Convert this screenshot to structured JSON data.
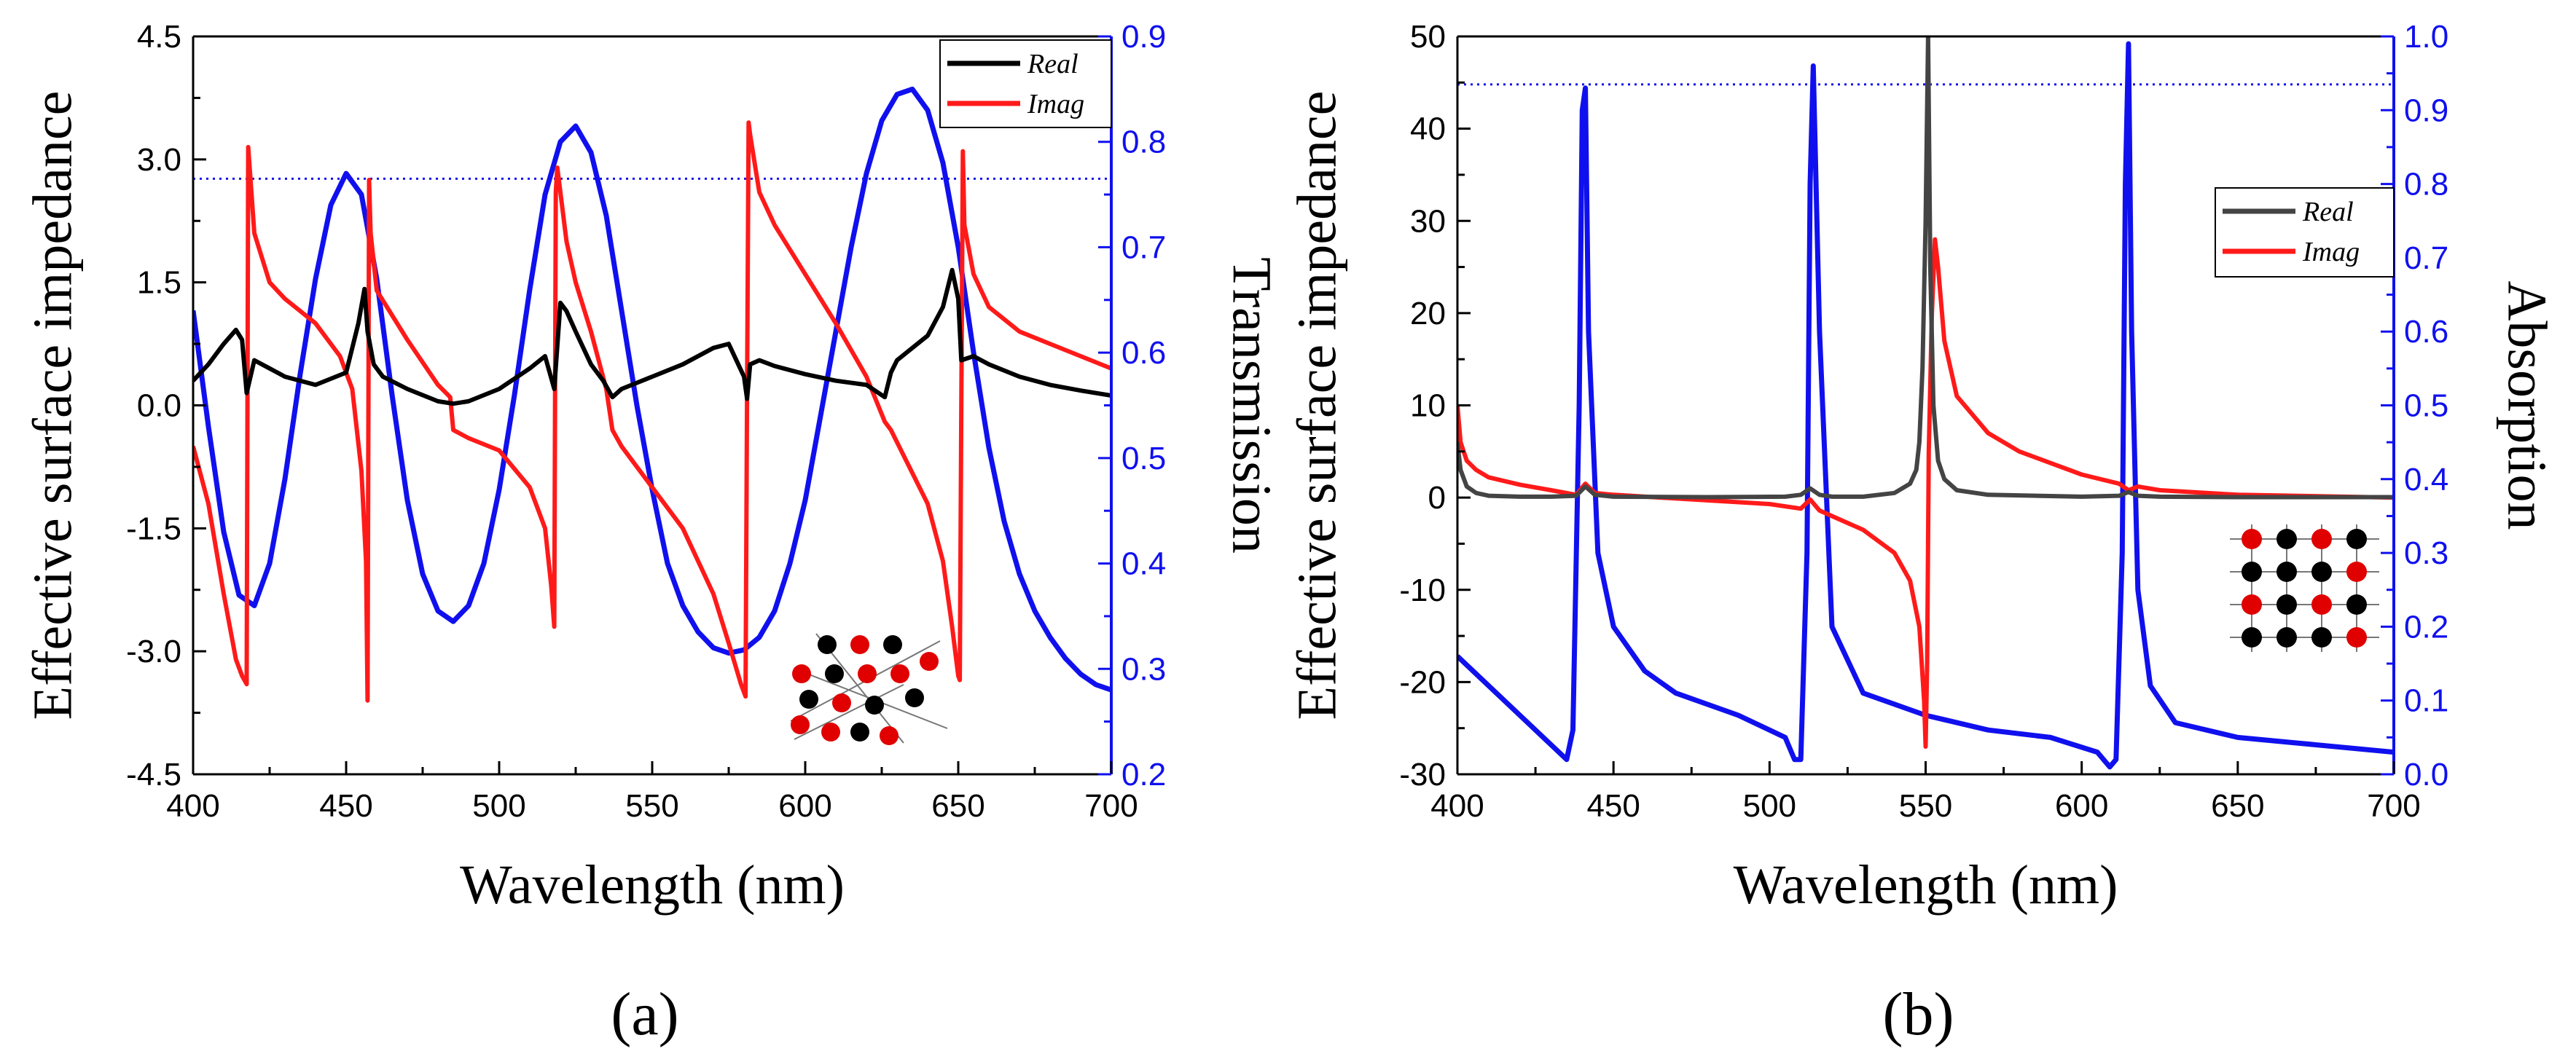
{
  "colors": {
    "real_a": "#000000",
    "real_b": "#444444",
    "imag": "#ff1a1a",
    "blue": "#1010ee",
    "red_atom": "#e00000",
    "black_atom": "#000000"
  },
  "chart_data": [
    {
      "panel_label": "(a)",
      "type": "line",
      "xlabel": "Wavelength (nm)",
      "ylabel": "Effective surface impedance",
      "y2label": "Transmission",
      "xlim": [
        400,
        700
      ],
      "ylim": [
        -4.5,
        4.5
      ],
      "y2lim": [
        0.2,
        0.9
      ],
      "x_ticks": [
        "400",
        "450",
        "500",
        "550",
        "600",
        "650",
        "700"
      ],
      "y_ticks": [
        "-4.5",
        "-3.0",
        "-1.5",
        "0.0",
        "1.5",
        "3.0",
        "4.5"
      ],
      "y2_ticks": [
        "0.2",
        "0.3",
        "0.4",
        "0.5",
        "0.6",
        "0.7",
        "0.8",
        "0.9"
      ],
      "legend": [
        "Real",
        "Imag"
      ],
      "reference_line": {
        "axis": "y2",
        "value": 0.765,
        "style": "dotted"
      },
      "series": [
        {
          "name": "Real",
          "axis": "y",
          "x": [
            400,
            405,
            410,
            414,
            416,
            417.5,
            420,
            425,
            430,
            440,
            450,
            454,
            456,
            457,
            459,
            462,
            470,
            480,
            485,
            490,
            500,
            510,
            515,
            518,
            520,
            522,
            525,
            530,
            534,
            537,
            540,
            550,
            560,
            570,
            575,
            580,
            581,
            582,
            585,
            590,
            600,
            610,
            620,
            626,
            628,
            630,
            640,
            645,
            648,
            650,
            651,
            655,
            660,
            670,
            680,
            690,
            700
          ],
          "y": [
            0.3,
            0.5,
            0.75,
            0.92,
            0.8,
            0.15,
            0.55,
            0.45,
            0.35,
            0.25,
            0.4,
            1.0,
            1.42,
            0.9,
            0.5,
            0.35,
            0.2,
            0.05,
            0.02,
            0.05,
            0.2,
            0.45,
            0.6,
            0.2,
            1.25,
            1.15,
            0.9,
            0.5,
            0.3,
            0.1,
            0.2,
            0.35,
            0.5,
            0.7,
            0.75,
            0.35,
            0.08,
            0.5,
            0.55,
            0.48,
            0.38,
            0.3,
            0.25,
            0.1,
            0.4,
            0.55,
            0.85,
            1.2,
            1.65,
            1.3,
            0.55,
            0.6,
            0.5,
            0.35,
            0.25,
            0.18,
            0.12
          ]
        },
        {
          "name": "Imag",
          "axis": "y",
          "x": [
            400,
            405,
            410,
            414,
            416,
            417.5,
            418,
            420,
            425,
            430,
            440,
            448,
            452,
            455,
            456.5,
            457,
            457.5,
            458,
            460,
            470,
            480,
            484,
            485,
            490,
            500,
            510,
            515,
            517,
            518,
            518.5,
            519,
            522,
            525,
            530,
            535,
            537,
            540,
            550,
            560,
            570,
            575,
            579,
            580.5,
            581,
            581.5,
            582,
            585,
            590,
            600,
            610,
            620,
            626,
            628,
            630,
            640,
            645,
            648,
            650,
            650.5,
            651,
            651.5,
            652,
            655,
            660,
            670,
            680,
            690,
            700
          ],
          "y": [
            -0.5,
            -1.2,
            -2.3,
            -3.1,
            -3.3,
            -3.4,
            3.15,
            2.1,
            1.5,
            1.3,
            1.0,
            0.6,
            0.2,
            -0.8,
            -1.9,
            -3.6,
            2.75,
            2.1,
            1.4,
            0.8,
            0.25,
            0.1,
            -0.3,
            -0.4,
            -0.55,
            -1.0,
            -1.5,
            -2.2,
            -2.7,
            2.6,
            2.9,
            2.0,
            1.5,
            0.9,
            0.2,
            -0.3,
            -0.5,
            -1.0,
            -1.5,
            -2.3,
            -2.9,
            -3.4,
            -3.55,
            0.2,
            3.45,
            3.3,
            2.6,
            2.2,
            1.6,
            1.0,
            0.35,
            -0.2,
            -0.3,
            -0.45,
            -1.2,
            -1.9,
            -2.7,
            -3.3,
            -3.35,
            0.0,
            3.1,
            2.2,
            1.6,
            1.2,
            0.9,
            0.75,
            0.6,
            0.45
          ]
        },
        {
          "name": "Transmission",
          "axis": "y2",
          "x": [
            400,
            405,
            410,
            415,
            420,
            425,
            430,
            435,
            440,
            445,
            450,
            455,
            460,
            465,
            470,
            475,
            480,
            485,
            490,
            495,
            500,
            505,
            510,
            515,
            520,
            525,
            530,
            535,
            540,
            545,
            550,
            555,
            560,
            565,
            570,
            575,
            580,
            585,
            590,
            595,
            600,
            605,
            610,
            615,
            620,
            625,
            630,
            635,
            640,
            645,
            650,
            655,
            660,
            665,
            670,
            675,
            680,
            685,
            690,
            695,
            700
          ],
          "y": [
            0.64,
            0.53,
            0.43,
            0.37,
            0.36,
            0.4,
            0.48,
            0.58,
            0.67,
            0.74,
            0.77,
            0.75,
            0.67,
            0.56,
            0.46,
            0.39,
            0.355,
            0.345,
            0.36,
            0.4,
            0.47,
            0.56,
            0.66,
            0.75,
            0.8,
            0.815,
            0.79,
            0.73,
            0.64,
            0.55,
            0.47,
            0.4,
            0.36,
            0.335,
            0.32,
            0.315,
            0.318,
            0.33,
            0.355,
            0.4,
            0.46,
            0.54,
            0.62,
            0.7,
            0.77,
            0.82,
            0.845,
            0.85,
            0.83,
            0.78,
            0.7,
            0.6,
            0.51,
            0.44,
            0.39,
            0.355,
            0.33,
            0.31,
            0.295,
            0.285,
            0.28
          ]
        }
      ]
    },
    {
      "panel_label": "(b)",
      "type": "line",
      "xlabel": "Wavelength (nm)",
      "ylabel": "Effective surface impedance",
      "y2label": "Absorption",
      "xlim": [
        400,
        700
      ],
      "ylim": [
        -30,
        50
      ],
      "y2lim": [
        0.0,
        1.0
      ],
      "x_ticks": [
        "400",
        "450",
        "500",
        "550",
        "600",
        "650",
        "700"
      ],
      "y_ticks": [
        "-30",
        "-20",
        "-10",
        "0",
        "10",
        "20",
        "30",
        "40",
        "50"
      ],
      "y2_ticks": [
        "0.0",
        "0.1",
        "0.2",
        "0.3",
        "0.4",
        "0.5",
        "0.6",
        "0.7",
        "0.8",
        "0.9",
        "1.0"
      ],
      "legend": [
        "Real",
        "Imag"
      ],
      "reference_line": {
        "axis": "y2",
        "value": 0.935,
        "style": "dotted"
      },
      "series": [
        {
          "name": "Real",
          "axis": "y",
          "x": [
            400,
            401,
            403,
            406,
            410,
            420,
            430,
            438,
            441,
            444,
            450,
            480,
            505,
            510,
            513,
            516,
            520,
            530,
            540,
            545,
            547,
            548,
            549,
            550,
            550.8,
            551.5,
            552.5,
            554,
            556,
            560,
            570,
            600,
            612,
            615,
            618,
            625,
            650,
            700
          ],
          "y": [
            6,
            3,
            1.2,
            0.5,
            0.2,
            0.1,
            0.1,
            0.2,
            1.2,
            0.3,
            0.1,
            0.05,
            0.1,
            0.3,
            1.0,
            0.3,
            0.1,
            0.1,
            0.5,
            1.5,
            3,
            6,
            14,
            30,
            50,
            25,
            10,
            4,
            2,
            0.8,
            0.3,
            0.1,
            0.2,
            0.6,
            0.2,
            0.1,
            0.05,
            0.05
          ]
        },
        {
          "name": "Imag",
          "axis": "y",
          "x": [
            400,
            401,
            403,
            406,
            410,
            420,
            430,
            438,
            441,
            444,
            450,
            480,
            500,
            510,
            513,
            516,
            520,
            530,
            540,
            545,
            548,
            549.5,
            550,
            550.5,
            551,
            552,
            553,
            554,
            556,
            560,
            570,
            580,
            600,
            612,
            615,
            618,
            625,
            650,
            700
          ],
          "y": [
            10,
            6,
            4,
            3,
            2.2,
            1.4,
            0.8,
            0.3,
            1.5,
            0.5,
            0.3,
            -0.3,
            -0.7,
            -1.2,
            -0.2,
            -1.4,
            -2,
            -3.5,
            -6,
            -9,
            -14,
            -22,
            -27,
            -18,
            5,
            20,
            28,
            25,
            17,
            11,
            7,
            5,
            2.5,
            1.5,
            0.8,
            1.2,
            0.8,
            0.3,
            0
          ]
        },
        {
          "name": "Absorption",
          "axis": "y2",
          "x": [
            400,
            405,
            410,
            420,
            430,
            435,
            437,
            439,
            440,
            441,
            442,
            445,
            450,
            460,
            470,
            490,
            505,
            508,
            510,
            512,
            513,
            514,
            516,
            520,
            530,
            550,
            570,
            590,
            605,
            609,
            611,
            613,
            614,
            615,
            616,
            618,
            622,
            630,
            650,
            700
          ],
          "y": [
            0.16,
            0.14,
            0.12,
            0.08,
            0.04,
            0.02,
            0.06,
            0.5,
            0.9,
            0.93,
            0.6,
            0.3,
            0.2,
            0.14,
            0.11,
            0.08,
            0.05,
            0.02,
            0.02,
            0.3,
            0.8,
            0.96,
            0.6,
            0.2,
            0.11,
            0.08,
            0.06,
            0.05,
            0.03,
            0.01,
            0.02,
            0.3,
            0.8,
            0.99,
            0.6,
            0.25,
            0.12,
            0.07,
            0.05,
            0.03
          ]
        }
      ]
    }
  ]
}
